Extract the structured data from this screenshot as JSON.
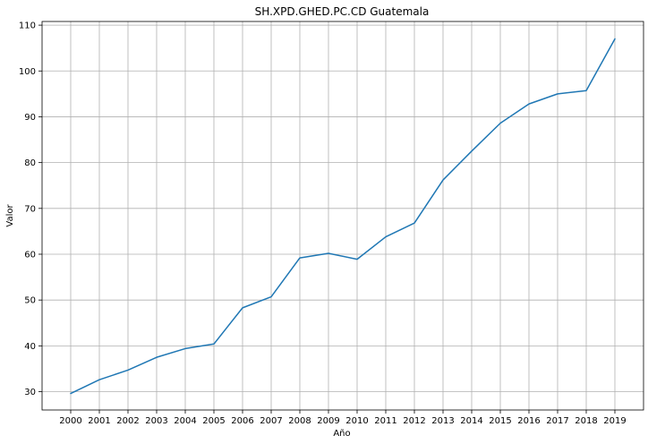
{
  "chart_data": {
    "type": "line",
    "title": "SH.XPD.GHED.PC.CD Guatemala",
    "xlabel": "Año",
    "ylabel": "Valor",
    "x": [
      "2000",
      "2001",
      "2002",
      "2003",
      "2004",
      "2005",
      "2006",
      "2007",
      "2008",
      "2009",
      "2010",
      "2011",
      "2012",
      "2013",
      "2014",
      "2015",
      "2016",
      "2017",
      "2018",
      "2019"
    ],
    "series": [
      {
        "values": [
          29.6,
          32.6,
          34.7,
          37.5,
          39.4,
          40.4,
          48.3,
          50.7,
          59.2,
          60.2,
          58.9,
          63.8,
          66.8,
          76.2,
          82.5,
          88.6,
          92.8,
          95.0,
          95.7,
          107.0
        ],
        "color": "#1f77b4"
      }
    ],
    "yticks": [
      30,
      40,
      50,
      60,
      70,
      80,
      90,
      100,
      110
    ],
    "ylim": [
      26.0,
      110.8
    ],
    "grid": true
  }
}
